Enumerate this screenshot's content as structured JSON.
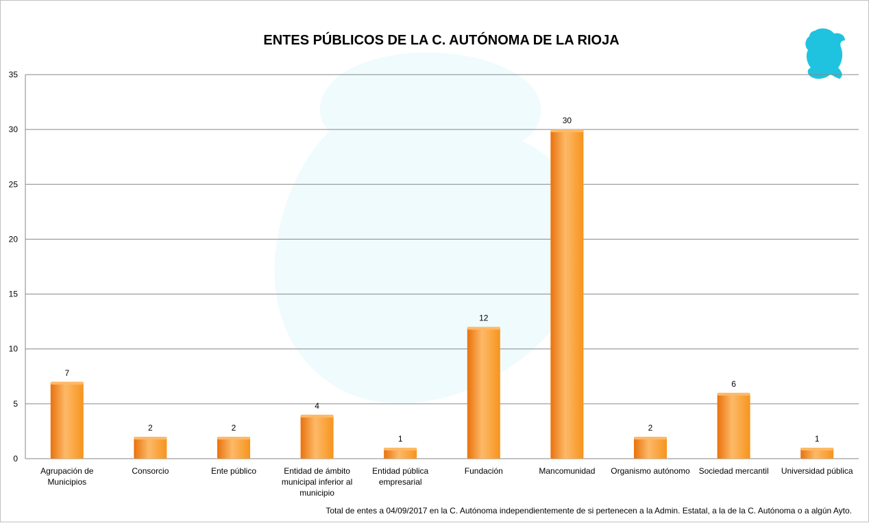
{
  "chart_data": {
    "type": "bar",
    "title": "ENTES PÚBLICOS DE LA C. AUTÓNOMA DE LA RIOJA",
    "categories": [
      [
        "Agrupación de",
        "Municipios"
      ],
      [
        "Consorcio"
      ],
      [
        "Ente público"
      ],
      [
        "Entidad de ámbito",
        "municipal inferior al",
        "municipio"
      ],
      [
        "Entidad pública",
        "empresarial"
      ],
      [
        "Fundación"
      ],
      [
        "Mancomunidad"
      ],
      [
        "Organismo autónomo"
      ],
      [
        "Sociedad mercantil"
      ],
      [
        "Universidad pública"
      ]
    ],
    "values": [
      7,
      2,
      2,
      4,
      1,
      12,
      30,
      2,
      6,
      1
    ],
    "ylim": [
      0,
      35
    ],
    "yticks": [
      0,
      5,
      10,
      15,
      20,
      25,
      30,
      35
    ],
    "grid": true,
    "legend": "none",
    "bar_color": "#f7941d",
    "bar_color_light": "#fdb968",
    "bar_color_dark": "#e9720c",
    "logo_color": "#1fc3e0",
    "footnote": "Total de entes a 04/09/2017 en la C. Autónoma independientemente de si pertenecen a la Admin. Estatal, a la de la C. Autónoma o a algún Ayto."
  }
}
